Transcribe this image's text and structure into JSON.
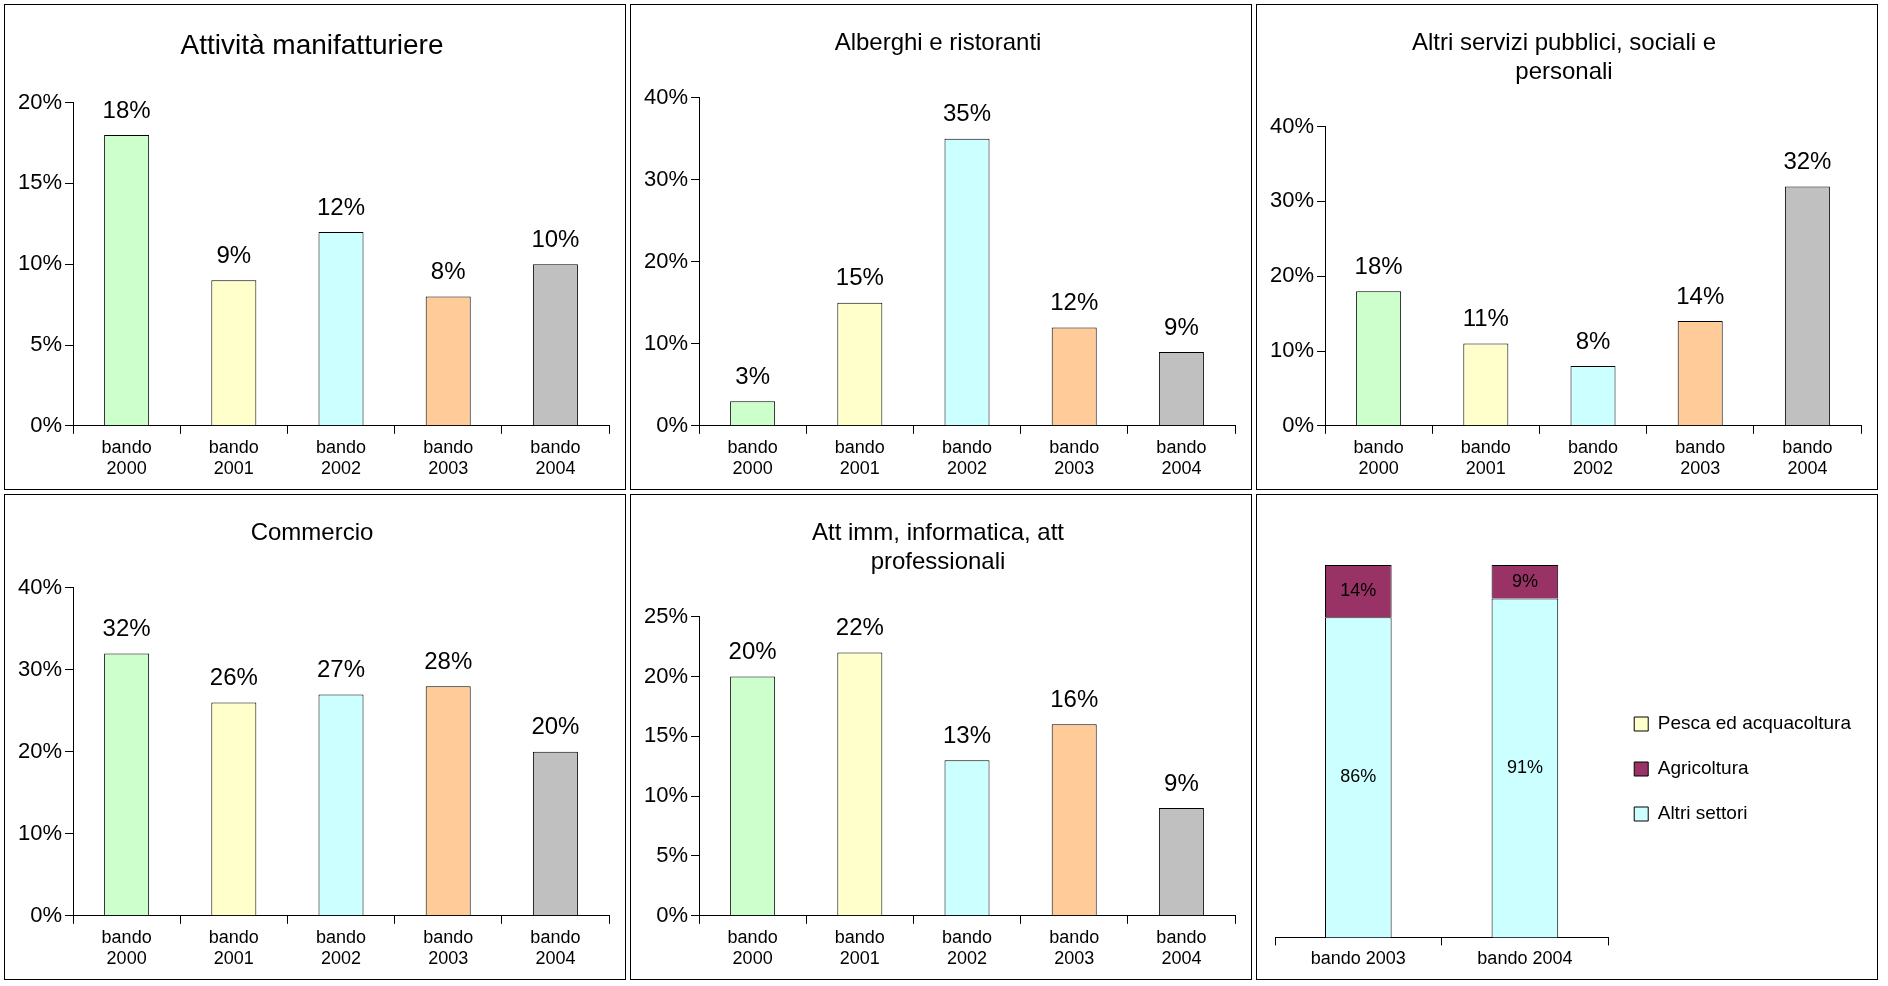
{
  "chart_data": [
    {
      "type": "bar",
      "title": "Attività manifatturiere",
      "categories": [
        "bando 2000",
        "bando 2001",
        "bando 2002",
        "bando 2003",
        "bando 2004"
      ],
      "values": [
        18,
        9,
        12,
        8,
        10
      ],
      "value_labels": [
        "18%",
        "9%",
        "12%",
        "8%",
        "10%"
      ],
      "colors": [
        "#ccffcc",
        "#ffffcc",
        "#ccffff",
        "#ffcc99",
        "#c0c0c0"
      ],
      "ylim": [
        0,
        20
      ],
      "yticks": [
        {
          "value": 0,
          "label": "0%"
        },
        {
          "value": 5,
          "label": "5%"
        },
        {
          "value": 10,
          "label": "10%"
        },
        {
          "value": 15,
          "label": "15%"
        },
        {
          "value": 20,
          "label": "20%"
        }
      ],
      "grid": false,
      "legend": false
    },
    {
      "type": "bar",
      "title": "Alberghi e ristoranti",
      "categories": [
        "bando 2000",
        "bando 2001",
        "bando 2002",
        "bando 2003",
        "bando 2004"
      ],
      "values": [
        3,
        15,
        35,
        12,
        9
      ],
      "value_labels": [
        "3%",
        "15%",
        "35%",
        "12%",
        "9%"
      ],
      "colors": [
        "#ccffcc",
        "#ffffcc",
        "#ccffff",
        "#ffcc99",
        "#c0c0c0"
      ],
      "ylim": [
        0,
        40
      ],
      "yticks": [
        {
          "value": 0,
          "label": "0%"
        },
        {
          "value": 10,
          "label": "10%"
        },
        {
          "value": 20,
          "label": "20%"
        },
        {
          "value": 30,
          "label": "30%"
        },
        {
          "value": 40,
          "label": "40%"
        }
      ],
      "grid": false,
      "legend": false
    },
    {
      "type": "bar",
      "title": "Altri servizi pubblici, sociali e personali",
      "categories": [
        "bando 2000",
        "bando 2001",
        "bando 2002",
        "bando 2003",
        "bando 2004"
      ],
      "values": [
        18,
        11,
        8,
        14,
        32
      ],
      "value_labels": [
        "18%",
        "11%",
        "8%",
        "14%",
        "32%"
      ],
      "colors": [
        "#ccffcc",
        "#ffffcc",
        "#ccffff",
        "#ffcc99",
        "#c0c0c0"
      ],
      "ylim": [
        0,
        40
      ],
      "yticks": [
        {
          "value": 0,
          "label": "0%"
        },
        {
          "value": 10,
          "label": "10%"
        },
        {
          "value": 20,
          "label": "20%"
        },
        {
          "value": 30,
          "label": "30%"
        },
        {
          "value": 40,
          "label": "40%"
        }
      ],
      "grid": false,
      "legend": false
    },
    {
      "type": "bar",
      "title": "Commercio",
      "categories": [
        "bando 2000",
        "bando 2001",
        "bando 2002",
        "bando 2003",
        "bando 2004"
      ],
      "values": [
        32,
        26,
        27,
        28,
        20
      ],
      "value_labels": [
        "32%",
        "26%",
        "27%",
        "28%",
        "20%"
      ],
      "colors": [
        "#ccffcc",
        "#ffffcc",
        "#ccffff",
        "#ffcc99",
        "#c0c0c0"
      ],
      "ylim": [
        0,
        40
      ],
      "yticks": [
        {
          "value": 0,
          "label": "0%"
        },
        {
          "value": 10,
          "label": "10%"
        },
        {
          "value": 20,
          "label": "20%"
        },
        {
          "value": 30,
          "label": "30%"
        },
        {
          "value": 40,
          "label": "40%"
        }
      ],
      "grid": false,
      "legend": false
    },
    {
      "type": "bar",
      "title": "Att imm, informatica, att professionali",
      "categories": [
        "bando 2000",
        "bando 2001",
        "bando 2002",
        "bando 2003",
        "bando 2004"
      ],
      "values": [
        20,
        22,
        13,
        16,
        9
      ],
      "value_labels": [
        "20%",
        "22%",
        "13%",
        "16%",
        "9%"
      ],
      "colors": [
        "#ccffcc",
        "#ffffcc",
        "#ccffff",
        "#ffcc99",
        "#c0c0c0"
      ],
      "ylim": [
        0,
        25
      ],
      "yticks": [
        {
          "value": 0,
          "label": "0%"
        },
        {
          "value": 5,
          "label": "5%"
        },
        {
          "value": 10,
          "label": "10%"
        },
        {
          "value": 15,
          "label": "15%"
        },
        {
          "value": 20,
          "label": "20%"
        },
        {
          "value": 25,
          "label": "25%"
        }
      ],
      "grid": false,
      "legend": false
    },
    {
      "type": "bar",
      "stacked": true,
      "categories": [
        "bando 2003",
        "bando 2004"
      ],
      "tick_labels": "x",
      "grid": false,
      "legend": "right",
      "series": [
        {
          "name": "Altri settori",
          "color": "#ccffff",
          "values": [
            86,
            91
          ],
          "value_labels": [
            "86%",
            "91%"
          ]
        },
        {
          "name": "Agricoltura",
          "color": "#993366",
          "values": [
            14,
            9
          ],
          "value_labels": [
            "14%",
            "9%"
          ]
        },
        {
          "name": "Pesca ed acquacoltura",
          "color": "#ffffcc",
          "values": [
            null,
            null
          ]
        }
      ]
    }
  ]
}
